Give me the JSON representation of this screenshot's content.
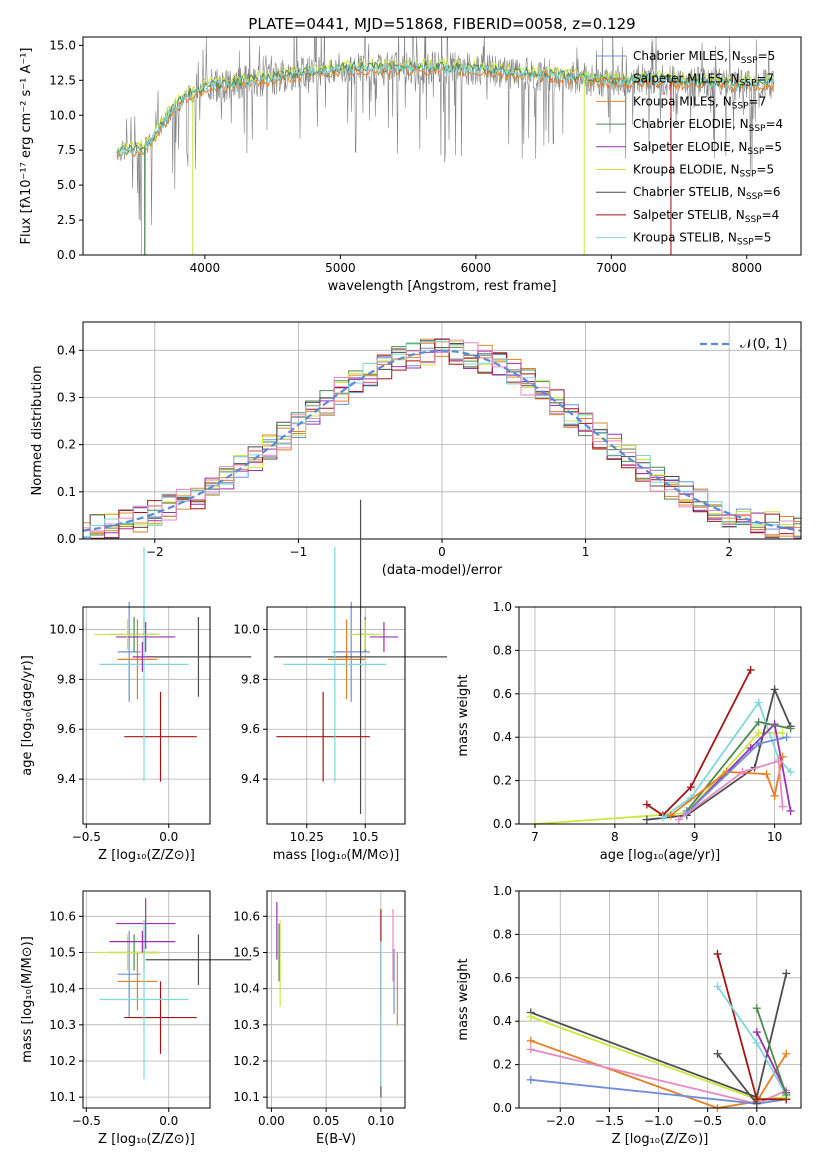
{
  "colors": {
    "chab_miles": "#6f8fdc",
    "salp_miles": "#e67e22",
    "krou_miles": "#d98b33",
    "chab_elodie": "#4e8a50",
    "salp_elodie": "#9b30b0",
    "krou_elodie": "#cde640",
    "chab_stelib": "#4d4d4d",
    "salp_stelib": "#a01515",
    "krou_stelib": "#7fd6db",
    "gauss": "#5b8bd6",
    "grid": "#b0b0b0",
    "spec_grey": "#808080"
  },
  "chart_data": [
    {
      "id": "spectrum",
      "type": "line",
      "title": "PLATE=0441, MJD=51868, FIBERID=0058, z=0.129",
      "xlabel": "wavelength [Angstrom, rest frame]",
      "ylabel": "Flux [fλ10⁻¹⁷ erg cm⁻² s⁻¹ A⁻¹]",
      "xlim": [
        3100,
        8400
      ],
      "ylim": [
        0,
        15.6
      ],
      "xticks": [
        4000,
        5000,
        6000,
        7000,
        8000
      ],
      "yticks": [
        0.0,
        2.5,
        5.0,
        7.5,
        10.0,
        12.5,
        15.0
      ],
      "legend_position": "right",
      "legend": [
        {
          "name": "Chabrier MILES, N_SSP=5",
          "color_key": "chab_miles"
        },
        {
          "name": "Salpeter MILES, N_SSP=7",
          "color_key": "salp_miles"
        },
        {
          "name": "Kroupa MILES, N_SSP=7",
          "color_key": "krou_miles"
        },
        {
          "name": "Chabrier ELODIE, N_SSP=4",
          "color_key": "chab_elodie"
        },
        {
          "name": "Salpeter ELODIE, N_SSP=5",
          "color_key": "salp_elodie"
        },
        {
          "name": "Kroupa ELODIE, N_SSP=5",
          "color_key": "krou_elodie"
        },
        {
          "name": "Chabrier STELIB, N_SSP=6",
          "color_key": "chab_stelib"
        },
        {
          "name": "Salpeter STELIB, N_SSP=4",
          "color_key": "salp_stelib"
        },
        {
          "name": "Kroupa STELIB, N_SSP=5",
          "color_key": "krou_stelib"
        }
      ],
      "continuum_points": [
        [
          3350,
          7.4
        ],
        [
          3450,
          7.5
        ],
        [
          3550,
          7.6
        ],
        [
          3650,
          8.8
        ],
        [
          3750,
          10.3
        ],
        [
          3850,
          11.3
        ],
        [
          3950,
          11.8
        ],
        [
          4050,
          12.2
        ],
        [
          4150,
          12.1
        ],
        [
          4300,
          12.4
        ],
        [
          4500,
          12.6
        ],
        [
          4700,
          13.0
        ],
        [
          4900,
          13.2
        ],
        [
          5100,
          13.4
        ],
        [
          5300,
          13.3
        ],
        [
          5500,
          13.4
        ],
        [
          5700,
          13.4
        ],
        [
          5900,
          13.3
        ],
        [
          6100,
          13.2
        ],
        [
          6300,
          13.0
        ],
        [
          6500,
          12.9
        ],
        [
          6700,
          12.7
        ],
        [
          6900,
          12.5
        ],
        [
          7100,
          12.4
        ],
        [
          7300,
          12.6
        ],
        [
          7500,
          12.4
        ],
        [
          7700,
          12.3
        ],
        [
          7900,
          12.2
        ],
        [
          8100,
          12.3
        ],
        [
          8200,
          12.3
        ]
      ],
      "model_dropouts": [
        {
          "series": "krou_elodie",
          "x": 3910
        },
        {
          "series": "krou_elodie",
          "x": 6800
        },
        {
          "series": "salp_miles",
          "x": 7440
        },
        {
          "series": "salp_stelib",
          "x": 7440
        },
        {
          "series": "chab_elodie",
          "x": 3555
        }
      ]
    },
    {
      "id": "residuals",
      "type": "line",
      "title": "",
      "xlabel": "(data-model)/error",
      "ylabel": "Normed distribution",
      "xlim": [
        -2.5,
        2.5
      ],
      "ylim": [
        0,
        0.46
      ],
      "xticks": [
        -2,
        -1,
        0,
        1,
        2
      ],
      "yticks": [
        0.0,
        0.1,
        0.2,
        0.3,
        0.4
      ],
      "legend_position": "top-right",
      "legend": [
        {
          "name": "𝒩(0, 1)",
          "color_key": "gauss"
        }
      ],
      "gaussian": {
        "mu": 0,
        "sigma": 1
      },
      "bin_width": 0.1
    },
    {
      "id": "age_vs_Z",
      "type": "scatter",
      "xlabel": "Z [log₁₀(Z/Z⊙)]",
      "ylabel": "age  [log₁₀(age/yr)]",
      "xlim": [
        -0.52,
        0.25
      ],
      "ylim": [
        9.22,
        10.09
      ],
      "xticks": [
        -0.5,
        0.0
      ],
      "yticks": [
        9.4,
        9.6,
        9.8,
        10.0
      ],
      "points": [
        {
          "c": "chab_miles",
          "x": -0.24,
          "y": 9.91,
          "xerr": 0.07,
          "yerr": 0.2
        },
        {
          "c": "salp_miles",
          "x": -0.19,
          "y": 9.88,
          "xerr": 0.12,
          "yerr": 0.16
        },
        {
          "c": "krou_miles",
          "x": -0.15,
          "y": 9.98,
          "xerr": 0.08,
          "yerr": 0.07
        },
        {
          "c": "chab_elodie",
          "x": -0.21,
          "y": 9.98,
          "xerr": 0.15,
          "yerr": 0.07
        },
        {
          "c": "salp_elodie",
          "x": -0.14,
          "y": 9.97,
          "xerr": 0.18,
          "yerr": 0.06
        },
        {
          "c": "krou_elodie",
          "x": -0.25,
          "y": 9.98,
          "xerr": 0.2,
          "yerr": 0.06
        },
        {
          "c": "chab_stelib",
          "x": 0.18,
          "y": 9.89,
          "xerr": 0.32,
          "yerr": 0.16
        },
        {
          "c": "salp_stelib",
          "x": -0.05,
          "y": 9.57,
          "xerr": 0.22,
          "yerr": 0.18
        },
        {
          "c": "krou_stelib",
          "x": -0.15,
          "y": 9.86,
          "xerr": 0.27,
          "yerr": 0.47
        },
        {
          "c": "salp_elodie_b",
          "x": -0.16,
          "y": 9.89,
          "xerr": 0.06,
          "yerr": 0.06
        }
      ]
    },
    {
      "id": "age_vs_mass",
      "type": "scatter",
      "xlabel": "mass [log₁₀(M/M⊙)]",
      "ylabel": "",
      "xlim": [
        10.08,
        10.67
      ],
      "ylim": [
        9.22,
        10.09
      ],
      "xticks": [
        10.25,
        10.5
      ],
      "yticks": [
        9.4,
        9.6,
        9.8,
        10.0
      ],
      "points": [
        {
          "c": "chab_miles",
          "x": 10.44,
          "y": 9.91,
          "xerr": 0.08,
          "yerr": 0.2
        },
        {
          "c": "salp_miles",
          "x": 10.42,
          "y": 9.88,
          "xerr": 0.08,
          "yerr": 0.16
        },
        {
          "c": "krou_miles",
          "x": 10.5,
          "y": 9.98,
          "xerr": 0.03,
          "yerr": 0.07
        },
        {
          "c": "chab_elodie",
          "x": 10.5,
          "y": 9.98,
          "xerr": 0.04,
          "yerr": 0.07
        },
        {
          "c": "salp_elodie",
          "x": 10.58,
          "y": 9.97,
          "xerr": 0.06,
          "yerr": 0.06
        },
        {
          "c": "krou_elodie",
          "x": 10.5,
          "y": 9.98,
          "xerr": 0.07,
          "yerr": 0.06
        },
        {
          "c": "chab_stelib",
          "x": 10.48,
          "y": 9.89,
          "xerr": 0.37,
          "yerr": 0.63
        },
        {
          "c": "salp_stelib",
          "x": 10.32,
          "y": 9.57,
          "xerr": 0.2,
          "yerr": 0.18
        },
        {
          "c": "krou_stelib",
          "x": 10.37,
          "y": 9.86,
          "xerr": 0.22,
          "yerr": 0.47
        }
      ]
    },
    {
      "id": "weight_vs_age",
      "type": "line",
      "xlabel": "age  [log₁₀(age/yr)]",
      "ylabel": "mass weight",
      "xlim": [
        6.8,
        10.33
      ],
      "ylim": [
        0,
        1.0
      ],
      "xticks": [
        7,
        8,
        9,
        10
      ],
      "yticks": [
        0.0,
        0.2,
        0.4,
        0.6,
        0.8,
        1.0
      ],
      "series": [
        {
          "c": "krou_elodie",
          "x": [
            7.0,
            8.9,
            9.8,
            10.1
          ],
          "y": [
            0.0,
            0.05,
            0.42,
            0.42
          ]
        },
        {
          "c": "salp_stelib",
          "x": [
            8.4,
            8.6,
            8.95,
            9.7
          ],
          "y": [
            0.09,
            0.04,
            0.17,
            0.71
          ]
        },
        {
          "c": "chab_stelib",
          "x": [
            8.4,
            8.9,
            9.75,
            10.0,
            10.2
          ],
          "y": [
            0.02,
            0.04,
            0.26,
            0.62,
            0.45
          ]
        },
        {
          "c": "krou_stelib",
          "x": [
            8.6,
            8.95,
            9.8,
            10.05,
            10.2
          ],
          "y": [
            0.03,
            0.12,
            0.56,
            0.3,
            0.24
          ]
        },
        {
          "c": "salp_elodie",
          "x": [
            8.9,
            9.7,
            10.0,
            10.2
          ],
          "y": [
            0.05,
            0.35,
            0.46,
            0.06
          ]
        },
        {
          "c": "chab_elodie",
          "x": [
            8.9,
            9.8,
            10.2
          ],
          "y": [
            0.06,
            0.47,
            0.44
          ]
        },
        {
          "c": "salp_miles",
          "x": [
            8.7,
            9.4,
            9.9,
            10.0,
            10.1
          ],
          "y": [
            0.04,
            0.24,
            0.23,
            0.13,
            0.31
          ]
        },
        {
          "c": "chab_miles",
          "x": [
            8.9,
            9.8,
            10.15
          ],
          "y": [
            0.05,
            0.37,
            0.4
          ]
        },
        {
          "c": "pink",
          "x": [
            8.8,
            9.6,
            10.05,
            10.1
          ],
          "y": [
            0.02,
            0.24,
            0.29,
            0.08
          ]
        }
      ]
    },
    {
      "id": "mass_vs_Z",
      "type": "scatter",
      "xlabel": "Z [log₁₀(Z/Z⊙)]",
      "ylabel": "mass [log₁₀(M/M⊙)]",
      "xlim": [
        -0.52,
        0.25
      ],
      "ylim": [
        10.07,
        10.67
      ],
      "xticks": [
        -0.5,
        0.0
      ],
      "yticks": [
        10.1,
        10.2,
        10.3,
        10.4,
        10.5,
        10.6
      ],
      "points": [
        {
          "c": "chab_miles",
          "x": -0.24,
          "y": 10.44,
          "xerr": 0.07,
          "yerr": 0.12
        },
        {
          "c": "salp_miles",
          "x": -0.19,
          "y": 10.42,
          "xerr": 0.12,
          "yerr": 0.08
        },
        {
          "c": "krou_miles",
          "x": -0.15,
          "y": 10.5,
          "xerr": 0.08,
          "yerr": 0.05
        },
        {
          "c": "chab_elodie",
          "x": -0.21,
          "y": 10.5,
          "xerr": 0.15,
          "yerr": 0.05
        },
        {
          "c": "salp_elodie",
          "x": -0.14,
          "y": 10.58,
          "xerr": 0.18,
          "yerr": 0.07
        },
        {
          "c": "krou_elodie",
          "x": -0.25,
          "y": 10.5,
          "xerr": 0.2,
          "yerr": 0.05
        },
        {
          "c": "chab_stelib",
          "x": 0.18,
          "y": 10.48,
          "xerr": 0.32,
          "yerr": 0.07
        },
        {
          "c": "salp_stelib",
          "x": -0.05,
          "y": 10.32,
          "xerr": 0.22,
          "yerr": 0.1
        },
        {
          "c": "krou_stelib",
          "x": -0.15,
          "y": 10.37,
          "xerr": 0.27,
          "yerr": 0.22
        },
        {
          "c": "salp_elodie_b",
          "x": -0.16,
          "y": 10.53,
          "xerr": 0.2,
          "yerr": 0.03
        }
      ]
    },
    {
      "id": "mass_vs_ebv",
      "type": "scatter",
      "xlabel": "E(B-V)",
      "ylabel": "",
      "xlim": [
        -0.004,
        0.122
      ],
      "ylim": [
        10.07,
        10.67
      ],
      "xticks": [
        0.0,
        0.05,
        0.1
      ],
      "xtick_labels": [
        "0.00",
        "0.05",
        "0.10"
      ],
      "yticks": [
        10.1,
        10.2,
        10.3,
        10.4,
        10.5,
        10.6
      ],
      "points": [
        {
          "c": "salp_elodie",
          "x": 0.005,
          "y": 10.56,
          "yerr": 0.08
        },
        {
          "c": "krou_elodie",
          "x": 0.008,
          "y": 10.47,
          "yerr": 0.12
        },
        {
          "c": "chab_elodie",
          "x": 0.007,
          "y": 10.5,
          "yerr": 0.08
        },
        {
          "c": "salp_stelib",
          "x": 0.1,
          "y": 10.47,
          "yerr": 0.15
        },
        {
          "c": "chab_stelib",
          "x": 0.1,
          "y": 10.3,
          "yerr": 0.2
        },
        {
          "c": "krou_stelib",
          "x": 0.1,
          "y": 10.33,
          "yerr": 0.2
        },
        {
          "c": "krou_miles",
          "x": 0.115,
          "y": 10.4,
          "yerr": 0.1
        },
        {
          "c": "chab_miles",
          "x": 0.112,
          "y": 10.42,
          "yerr": 0.09
        },
        {
          "c": "pink",
          "x": 0.111,
          "y": 10.52,
          "yerr": 0.1
        }
      ]
    },
    {
      "id": "weight_vs_Z",
      "type": "line",
      "xlabel": "Z [log₁₀(Z/Z⊙)]",
      "ylabel": "mass weight",
      "xlim": [
        -2.42,
        0.45
      ],
      "ylim": [
        0,
        1.0
      ],
      "xticks": [
        -2.0,
        -1.5,
        -1.0,
        -0.5,
        0.0
      ],
      "yticks": [
        0.0,
        0.2,
        0.4,
        0.6,
        0.8,
        1.0
      ],
      "series": [
        {
          "c": "chab_stelib",
          "x": [
            -2.3,
            0.0,
            0.3
          ],
          "y": [
            0.44,
            0.05,
            0.62
          ]
        },
        {
          "c": "krou_elodie",
          "x": [
            -2.3,
            0.0,
            0.3
          ],
          "y": [
            0.42,
            0.04,
            0.05
          ]
        },
        {
          "c": "salp_miles",
          "x": [
            -2.3,
            -0.4,
            0.0,
            0.3
          ],
          "y": [
            0.31,
            0.0,
            0.03,
            0.25
          ]
        },
        {
          "c": "pink",
          "x": [
            -2.3,
            0.0,
            0.3
          ],
          "y": [
            0.27,
            0.02,
            0.08
          ]
        },
        {
          "c": "chab_miles",
          "x": [
            -2.3,
            0.0,
            0.3
          ],
          "y": [
            0.13,
            0.02,
            0.04
          ]
        },
        {
          "c": "salp_stelib",
          "x": [
            -0.4,
            0.0,
            0.3
          ],
          "y": [
            0.71,
            0.04,
            0.04
          ]
        },
        {
          "c": "krou_stelib",
          "x": [
            -0.4,
            0.0,
            0.3
          ],
          "y": [
            0.56,
            0.3,
            0.06
          ]
        },
        {
          "c": "salp_elodie",
          "x": [
            0.0,
            0.3
          ],
          "y": [
            0.35,
            0.07
          ]
        },
        {
          "c": "chab_elodie",
          "x": [
            0.0,
            0.3
          ],
          "y": [
            0.46,
            0.06
          ]
        },
        {
          "c": "chab_stelib",
          "x": [
            -0.4,
            0.0
          ],
          "y": [
            0.25,
            0.02
          ]
        }
      ]
    }
  ]
}
